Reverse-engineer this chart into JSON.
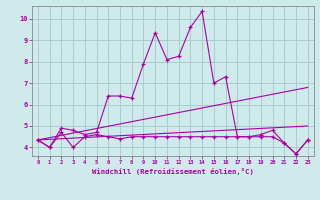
{
  "xlabel": "Windchill (Refroidissement éolien,°C)",
  "ylabel": "",
  "xlim": [
    -0.5,
    23.5
  ],
  "ylim": [
    3.6,
    10.6
  ],
  "xtick_labels": [
    "0",
    "1",
    "2",
    "3",
    "4",
    "5",
    "6",
    "7",
    "8",
    "9",
    "10",
    "11",
    "12",
    "13",
    "14",
    "15",
    "16",
    "17",
    "18",
    "19",
    "20",
    "21",
    "22",
    "23"
  ],
  "ytick_values": [
    4,
    5,
    6,
    7,
    8,
    9,
    10
  ],
  "ytick_labels": [
    "4",
    "5",
    "6",
    "7",
    "8",
    "9",
    "10"
  ],
  "background_color": "#ceeaea",
  "grid_color": "#aacccc",
  "line_color": "#aa00aa",
  "series_flat_x": [
    0,
    1,
    2,
    3,
    4,
    5,
    6,
    7,
    8,
    9,
    10,
    11,
    12,
    13,
    14,
    15,
    16,
    17,
    18,
    19,
    20,
    21,
    22,
    23
  ],
  "series_flat_y": [
    4.35,
    4.0,
    4.7,
    4.0,
    4.5,
    4.6,
    4.5,
    4.4,
    4.5,
    4.5,
    4.5,
    4.5,
    4.5,
    4.5,
    4.5,
    4.5,
    4.5,
    4.5,
    4.5,
    4.6,
    4.8,
    4.2,
    3.7,
    4.35
  ],
  "series_spike_x": [
    0,
    1,
    2,
    3,
    4,
    5,
    6,
    7,
    8,
    9,
    10,
    11,
    12,
    13,
    14,
    15,
    16,
    17,
    18,
    19,
    20,
    21,
    22,
    23
  ],
  "series_spike_y": [
    4.35,
    4.0,
    4.9,
    4.8,
    4.6,
    4.7,
    6.4,
    6.4,
    6.3,
    7.9,
    9.35,
    8.1,
    8.25,
    9.6,
    10.35,
    7.0,
    7.3,
    4.5,
    4.5,
    4.5,
    4.5,
    4.2,
    3.7,
    4.35
  ],
  "trend1_x": [
    0,
    23
  ],
  "trend1_y": [
    4.35,
    6.8
  ],
  "trend2_x": [
    0,
    23
  ],
  "trend2_y": [
    4.35,
    5.0
  ]
}
